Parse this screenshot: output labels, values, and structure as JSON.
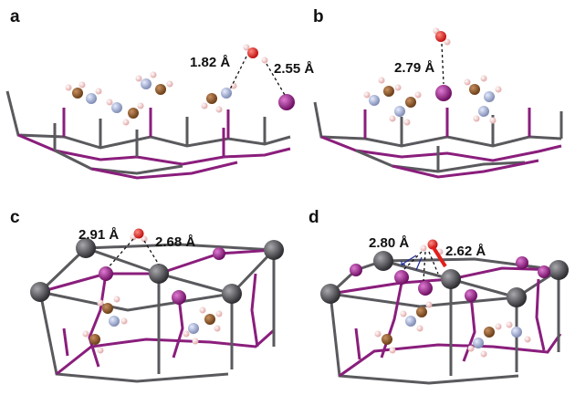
{
  "panels": [
    {
      "label": "a",
      "distances": [
        "1.82 Å",
        "2.55 Å"
      ]
    },
    {
      "label": "b",
      "distances": [
        "2.79 Å"
      ]
    },
    {
      "label": "c",
      "distances": [
        "2.91 Å",
        "2.68 Å"
      ]
    },
    {
      "label": "d",
      "distances": [
        "2.80 Å",
        "2.62 Å"
      ]
    }
  ],
  "colors": {
    "framework_gray": "#5a5a5e",
    "framework_purple": "#8a1e7c",
    "oxygen": "#e0201c",
    "hydrogen": "#f4cccc",
    "carbon": "#8a5a2c",
    "nitrogen": "#a9b4d6",
    "metal_purple": "#9a2a8e",
    "metal_gray": "#4a4a4e"
  }
}
